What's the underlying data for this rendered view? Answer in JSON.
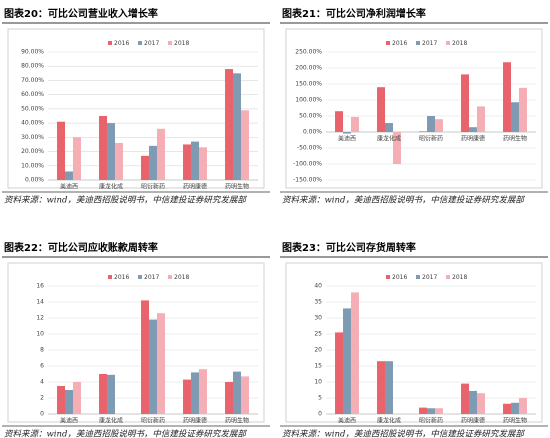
{
  "chart_data": [
    {
      "type": "bar",
      "title": "图表20：可比公司营业收入增长率",
      "source": "资料来源：wind，美迪西招股说明书，中信建投证券研究发展部",
      "categories": [
        "美迪西",
        "康龙化成",
        "昭衍新药",
        "药明康德",
        "药明生物"
      ],
      "series": [
        {
          "name": "2016",
          "color": "#e8636b",
          "values": [
            41,
            45,
            17,
            25,
            78
          ]
        },
        {
          "name": "2017",
          "color": "#7f9bb3",
          "values": [
            6,
            40,
            24,
            27,
            75
          ]
        },
        {
          "name": "2018",
          "color": "#f4aeb4",
          "values": [
            30,
            26,
            36,
            23,
            49
          ]
        }
      ],
      "ylim": [
        0,
        90
      ],
      "yticks": [
        {
          "value": 0,
          "label": "0.00%"
        },
        {
          "value": 10,
          "label": "10.00%"
        },
        {
          "value": 20,
          "label": "20.00%"
        },
        {
          "value": 30,
          "label": "30.00%"
        },
        {
          "value": 40,
          "label": "40.00%"
        },
        {
          "value": 50,
          "label": "50.00%"
        },
        {
          "value": 60,
          "label": "60.00%"
        },
        {
          "value": 70,
          "label": "70.00%"
        },
        {
          "value": 80,
          "label": "80.00%"
        },
        {
          "value": 90,
          "label": "90.00%"
        }
      ],
      "grid": true
    },
    {
      "type": "bar",
      "title": "图表21：可比公司净利润增长率",
      "source": "资料来源：wind，美迪西招股说明书，中信建投证券研究发展部",
      "categories": [
        "美迪西",
        "康龙化成",
        "昭衍新药",
        "药明康德",
        "药明生物"
      ],
      "series": [
        {
          "name": "2016",
          "color": "#e8636b",
          "values": [
            65,
            140,
            2,
            180,
            218
          ]
        },
        {
          "name": "2017",
          "color": "#7f9bb3",
          "values": [
            -5,
            28,
            50,
            15,
            93
          ]
        },
        {
          "name": "2018",
          "color": "#f4aeb4",
          "values": [
            47,
            -100,
            40,
            80,
            138
          ]
        }
      ],
      "ylim": [
        -150,
        250
      ],
      "yticks": [
        {
          "value": -150,
          "label": "-150.00%"
        },
        {
          "value": -100,
          "label": "-100.00%"
        },
        {
          "value": -50,
          "label": "-50.00%"
        },
        {
          "value": 0,
          "label": "0.00%"
        },
        {
          "value": 50,
          "label": "50.00%"
        },
        {
          "value": 100,
          "label": "100.00%"
        },
        {
          "value": 150,
          "label": "150.00%"
        },
        {
          "value": 200,
          "label": "200.00%"
        },
        {
          "value": 250,
          "label": "250.00%"
        }
      ],
      "grid": true
    },
    {
      "type": "bar",
      "title": "图表22：可比公司应收账款周转率",
      "source": "资料来源：wind，美迪西招股说明书，中信建投证券研究发展部",
      "categories": [
        "美迪西",
        "康龙化成",
        "昭衍新药",
        "药明康德",
        "药明生物"
      ],
      "series": [
        {
          "name": "2016",
          "color": "#e8636b",
          "values": [
            3.5,
            5.0,
            14.2,
            4.3,
            4.0
          ]
        },
        {
          "name": "2017",
          "color": "#7f9bb3",
          "values": [
            3.0,
            4.9,
            11.8,
            5.2,
            5.3
          ]
        },
        {
          "name": "2018",
          "color": "#f4aeb4",
          "values": [
            4.0,
            null,
            12.6,
            5.6,
            4.7
          ]
        }
      ],
      "ylim": [
        0,
        16
      ],
      "yticks": [
        0,
        2,
        4,
        6,
        8,
        10,
        12,
        14,
        16
      ],
      "grid": true
    },
    {
      "type": "bar",
      "title": "图表23：可比公司存货周转率",
      "source": "资料来源：wind，美迪西招股说明书，中信建投证券研究发展部",
      "categories": [
        "美迪西",
        "康龙化成",
        "昭衍新药",
        "药明康德",
        "药明生物"
      ],
      "series": [
        {
          "name": "2016",
          "color": "#e8636b",
          "values": [
            25.5,
            16.5,
            2,
            9.5,
            3.2
          ]
        },
        {
          "name": "2017",
          "color": "#7f9bb3",
          "values": [
            33,
            16.5,
            1.8,
            7.2,
            3.5
          ]
        },
        {
          "name": "2018",
          "color": "#f4aeb4",
          "values": [
            38,
            null,
            1.8,
            6.5,
            5
          ]
        }
      ],
      "ylim": [
        0,
        40
      ],
      "yticks": [
        0,
        5,
        10,
        15,
        20,
        25,
        30,
        35,
        40
      ],
      "grid": true
    }
  ]
}
